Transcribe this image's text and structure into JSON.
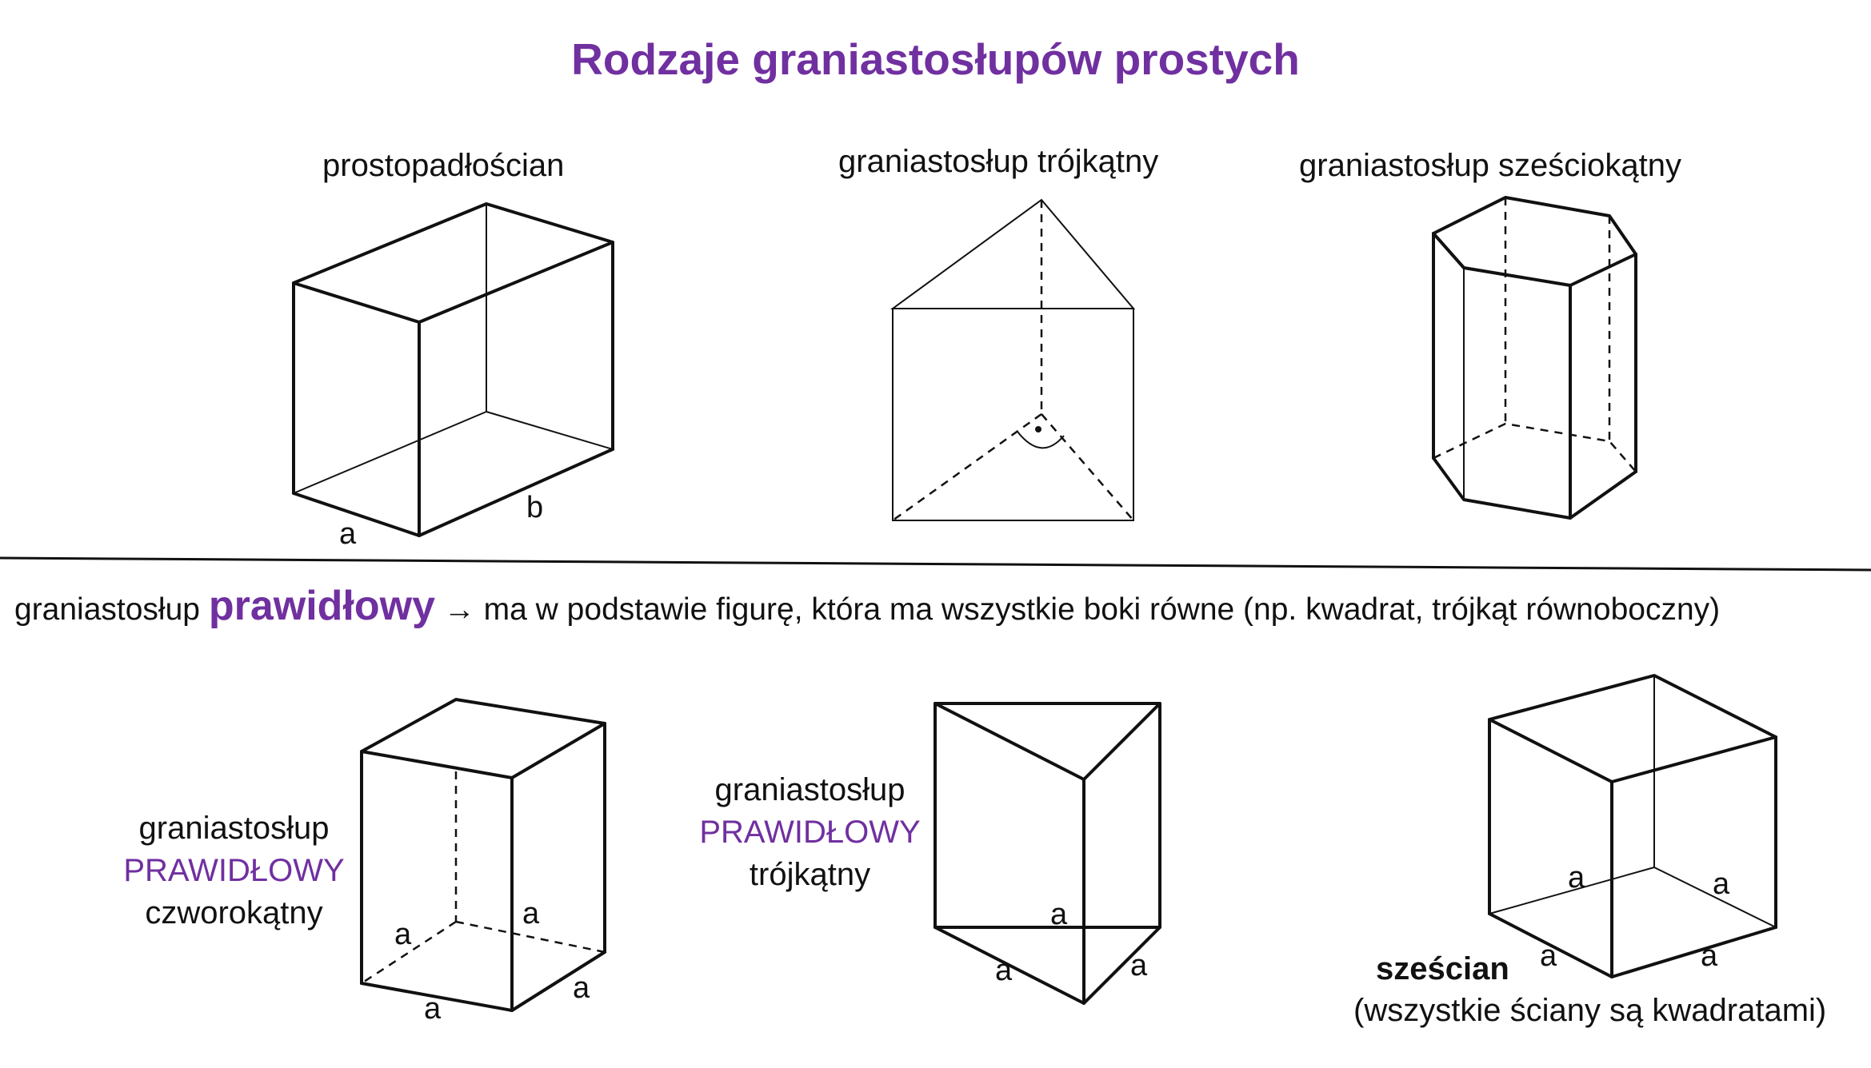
{
  "title": "Rodzaje graniastosłupów prostych",
  "top_row": {
    "cuboid_label": "prostopadłościan",
    "triangular_label": "graniastosłup trójkątny",
    "hexagonal_label": "graniastosłup sześciokątny",
    "cuboid_edge_a": "a",
    "cuboid_edge_b": "b"
  },
  "definition": {
    "prefix": "graniastosłup",
    "keyword": "prawidłowy",
    "arrow": "→",
    "rest": "ma w podstawie figurę, która ma wszystkie boki równe (np. kwadrat, trójkąt równoboczny)"
  },
  "bottom_row": {
    "square_prism": {
      "line1": "graniastosłup",
      "line2": "PRAWIDŁOWY",
      "line3": "czworokątny",
      "edge_labels": [
        "a",
        "a",
        "a",
        "a"
      ]
    },
    "triangular_prism": {
      "line1": "graniastosłup",
      "line2": "PRAWIDŁOWY",
      "line3": "trójkątny",
      "edge_labels": [
        "a",
        "a",
        "a"
      ]
    },
    "cube": {
      "name": "sześcian",
      "note": "(wszystkie ściany są kwadratami)",
      "edge_labels": [
        "a",
        "a",
        "a",
        "a"
      ]
    }
  },
  "colors": {
    "accent": "#7030a0",
    "text": "#111111"
  }
}
